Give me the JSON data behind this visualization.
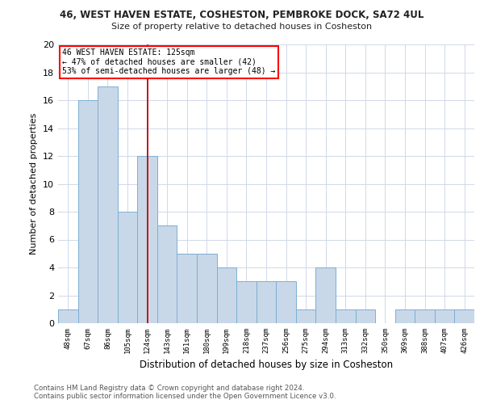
{
  "title1": "46, WEST HAVEN ESTATE, COSHESTON, PEMBROKE DOCK, SA72 4UL",
  "title2": "Size of property relative to detached houses in Cosheston",
  "xlabel": "Distribution of detached houses by size in Cosheston",
  "ylabel": "Number of detached properties",
  "categories": [
    "48sqm",
    "67sqm",
    "86sqm",
    "105sqm",
    "124sqm",
    "143sqm",
    "161sqm",
    "180sqm",
    "199sqm",
    "218sqm",
    "237sqm",
    "256sqm",
    "275sqm",
    "294sqm",
    "313sqm",
    "332sqm",
    "350sqm",
    "369sqm",
    "388sqm",
    "407sqm",
    "426sqm"
  ],
  "values": [
    1,
    16,
    17,
    8,
    12,
    7,
    5,
    5,
    4,
    3,
    3,
    3,
    1,
    4,
    1,
    1,
    0,
    1,
    1,
    1,
    1
  ],
  "bar_color": "#c8d8e8",
  "bar_edgecolor": "#7bafd4",
  "redline_index": 4,
  "annotation_title": "46 WEST HAVEN ESTATE: 125sqm",
  "annotation_line1": "← 47% of detached houses are smaller (42)",
  "annotation_line2": "53% of semi-detached houses are larger (48) →",
  "ylim": [
    0,
    20
  ],
  "yticks": [
    0,
    2,
    4,
    6,
    8,
    10,
    12,
    14,
    16,
    18,
    20
  ],
  "footer1": "Contains HM Land Registry data © Crown copyright and database right 2024.",
  "footer2": "Contains public sector information licensed under the Open Government Licence v3.0.",
  "background_color": "#ffffff",
  "grid_color": "#d0d8e8"
}
